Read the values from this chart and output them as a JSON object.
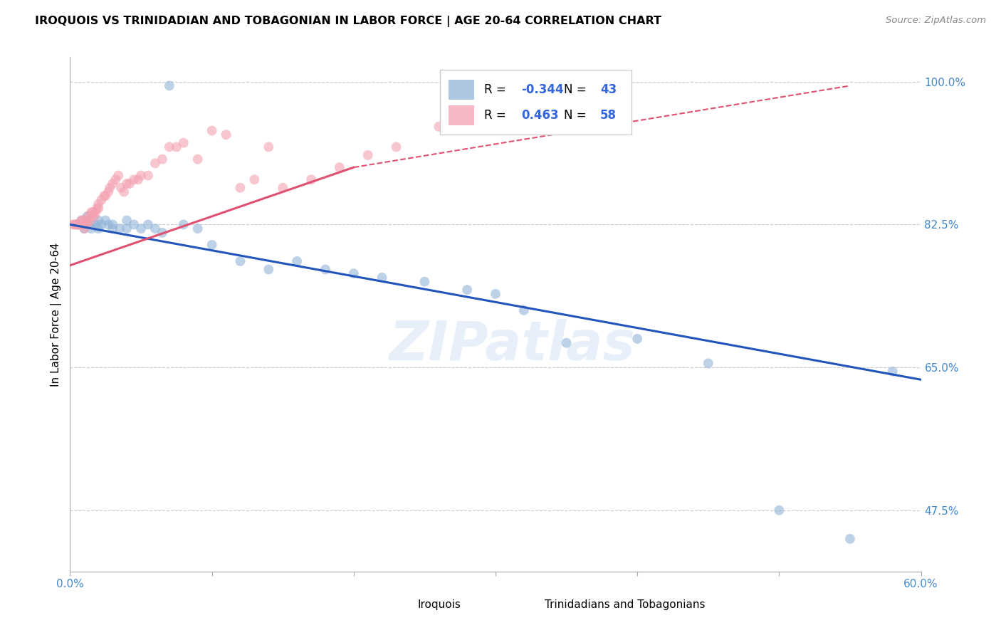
{
  "title": "IROQUOIS VS TRINIDADIAN AND TOBAGONIAN IN LABOR FORCE | AGE 20-64 CORRELATION CHART",
  "source": "Source: ZipAtlas.com",
  "ylabel": "In Labor Force | Age 20-64",
  "xlim": [
    0.0,
    0.6
  ],
  "ylim": [
    0.4,
    1.03
  ],
  "xticks": [
    0.0,
    0.1,
    0.2,
    0.3,
    0.4,
    0.5,
    0.6
  ],
  "xticklabels": [
    "0.0%",
    "",
    "",
    "",
    "",
    "",
    "60.0%"
  ],
  "ytick_positions": [
    0.475,
    0.65,
    0.825,
    1.0
  ],
  "ytick_labels": [
    "47.5%",
    "65.0%",
    "82.5%",
    "100.0%"
  ],
  "legend_blue_r": "-0.344",
  "legend_blue_n": "43",
  "legend_pink_r": "0.463",
  "legend_pink_n": "58",
  "legend_label_blue": "Iroquois",
  "legend_label_pink": "Trinidadians and Tobagonians",
  "blue_color": "#92B4D8",
  "pink_color": "#F4A0B0",
  "blue_line_color": "#2255BB",
  "pink_line_color": "#E05070",
  "watermark": "ZIPatlas",
  "blue_scatter_x": [
    0.005,
    0.008,
    0.01,
    0.01,
    0.012,
    0.015,
    0.015,
    0.018,
    0.02,
    0.02,
    0.022,
    0.025,
    0.027,
    0.03,
    0.03,
    0.035,
    0.04,
    0.04,
    0.045,
    0.05,
    0.055,
    0.06,
    0.065,
    0.07,
    0.08,
    0.09,
    0.1,
    0.12,
    0.14,
    0.16,
    0.18,
    0.2,
    0.22,
    0.25,
    0.28,
    0.3,
    0.32,
    0.35,
    0.4,
    0.45,
    0.5,
    0.55,
    0.58
  ],
  "blue_scatter_y": [
    0.825,
    0.83,
    0.825,
    0.82,
    0.835,
    0.825,
    0.82,
    0.825,
    0.83,
    0.82,
    0.825,
    0.83,
    0.825,
    0.82,
    0.825,
    0.82,
    0.83,
    0.82,
    0.825,
    0.82,
    0.825,
    0.82,
    0.815,
    0.995,
    0.825,
    0.82,
    0.8,
    0.78,
    0.77,
    0.78,
    0.77,
    0.765,
    0.76,
    0.755,
    0.745,
    0.74,
    0.72,
    0.68,
    0.685,
    0.655,
    0.475,
    0.44,
    0.645
  ],
  "pink_scatter_x": [
    0.002,
    0.003,
    0.004,
    0.005,
    0.005,
    0.006,
    0.007,
    0.008,
    0.008,
    0.009,
    0.01,
    0.01,
    0.011,
    0.012,
    0.013,
    0.014,
    0.015,
    0.015,
    0.016,
    0.017,
    0.018,
    0.019,
    0.02,
    0.02,
    0.022,
    0.024,
    0.025,
    0.027,
    0.028,
    0.03,
    0.032,
    0.034,
    0.036,
    0.038,
    0.04,
    0.042,
    0.045,
    0.048,
    0.05,
    0.055,
    0.06,
    0.065,
    0.07,
    0.075,
    0.08,
    0.09,
    0.1,
    0.11,
    0.12,
    0.13,
    0.14,
    0.15,
    0.17,
    0.19,
    0.21,
    0.23,
    0.26,
    0.3
  ],
  "pink_scatter_y": [
    0.825,
    0.825,
    0.825,
    0.825,
    0.825,
    0.825,
    0.825,
    0.83,
    0.825,
    0.83,
    0.825,
    0.82,
    0.83,
    0.825,
    0.835,
    0.83,
    0.835,
    0.84,
    0.84,
    0.835,
    0.84,
    0.845,
    0.845,
    0.85,
    0.855,
    0.86,
    0.86,
    0.865,
    0.87,
    0.875,
    0.88,
    0.885,
    0.87,
    0.865,
    0.875,
    0.875,
    0.88,
    0.88,
    0.885,
    0.885,
    0.9,
    0.905,
    0.92,
    0.92,
    0.925,
    0.905,
    0.94,
    0.935,
    0.87,
    0.88,
    0.92,
    0.87,
    0.88,
    0.895,
    0.91,
    0.92,
    0.945,
    0.965
  ]
}
